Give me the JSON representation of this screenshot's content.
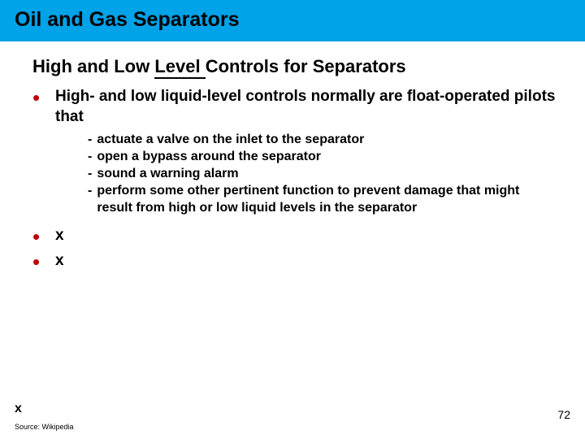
{
  "title_bar_bg": "#00a2e8",
  "title": "Oil and Gas Separators",
  "title_font_size": 25,
  "subtitle_pre": "High and Low ",
  "subtitle_underlined": "Level ",
  "subtitle_post": "Controls for Separators",
  "subtitle_font_size": 22,
  "bullet_color": "#c00000",
  "bullets": [
    {
      "text": "High- and low liquid-level controls normally are float-operated pilots that",
      "sub": [
        "actuate a valve on the inlet to the separator",
        "open a bypass around the separator",
        "sound a warning alarm",
        "perform some other pertinent function to prevent damage that might result from high or low liquid levels in the separator"
      ]
    },
    {
      "text": "x",
      "sub": []
    },
    {
      "text": "x",
      "sub": []
    }
  ],
  "footer_x": "x",
  "source": "Source: Wikipedia",
  "page_number": "72",
  "body_bold_fontsize": 19,
  "sub_fontsize": 16
}
